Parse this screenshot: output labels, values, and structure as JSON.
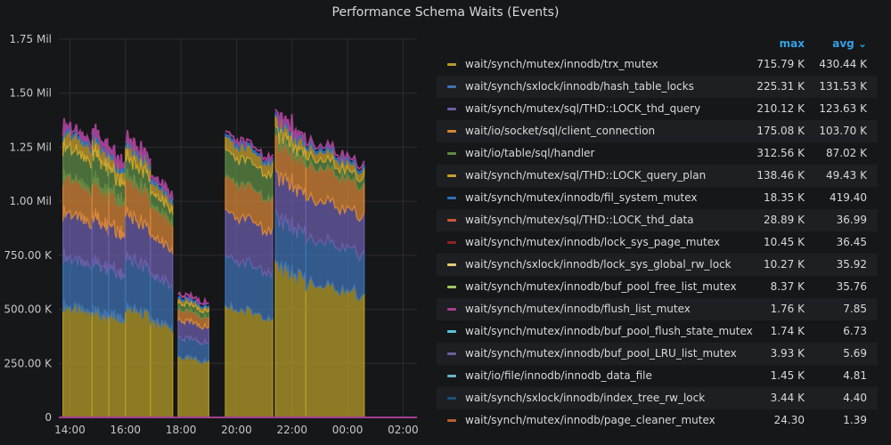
{
  "chart_data": {
    "type": "area",
    "title": "Performance Schema Waits (Events)",
    "y_ticks": [
      "0",
      "250.00 K",
      "500.00 K",
      "750.00 K",
      "1.00 Mil",
      "1.25 Mil",
      "1.50 Mil",
      "1.75 Mil"
    ],
    "y_tick_values": [
      0,
      250000,
      500000,
      750000,
      1000000,
      1250000,
      1500000,
      1750000
    ],
    "ylim": [
      0,
      1750000
    ],
    "x_ticks": [
      "14:00",
      "16:00",
      "18:00",
      "20:00",
      "22:00",
      "00:00",
      "02:00"
    ],
    "x_tick_values": [
      14,
      16,
      18,
      20,
      22,
      24,
      26
    ],
    "xlim": [
      13.6,
      26.5
    ],
    "stacked": true,
    "legend_header": {
      "max": "max",
      "avg": "avg"
    },
    "series": [
      {
        "name": "wait/synch/mutex/innodb/trx_mutex",
        "max": "715.79 K",
        "avg": "430.44 K",
        "color": "#b59c29"
      },
      {
        "name": "wait/synch/sxlock/innodb/hash_table_locks",
        "max": "225.31 K",
        "avg": "131.53 K",
        "color": "#3e72b1"
      },
      {
        "name": "wait/synch/mutex/sql/THD::LOCK_thd_query",
        "max": "210.12 K",
        "avg": "123.63 K",
        "color": "#6b5ea8"
      },
      {
        "name": "wait/io/socket/sql/client_connection",
        "max": "175.08 K",
        "avg": "103.70 K",
        "color": "#d68637"
      },
      {
        "name": "wait/io/table/sql/handler",
        "max": "312.56 K",
        "avg": "87.02 K",
        "color": "#5e8b45"
      },
      {
        "name": "wait/synch/mutex/sql/THD::LOCK_query_plan",
        "max": "138.46 K",
        "avg": "49.43 K",
        "color": "#c9a22e"
      },
      {
        "name": "wait/synch/mutex/innodb/fil_system_mutex",
        "max": "18.35 K",
        "avg": "419.40",
        "color": "#2f6fb8"
      },
      {
        "name": "wait/synch/mutex/sql/THD::LOCK_thd_data",
        "max": "28.89 K",
        "avg": "36.99",
        "color": "#d0573a"
      },
      {
        "name": "wait/synch/mutex/innodb/lock_sys_page_mutex",
        "max": "10.45 K",
        "avg": "36.45",
        "color": "#8f2323"
      },
      {
        "name": "wait/synch/sxlock/innodb/lock_sys_global_rw_lock",
        "max": "10.27 K",
        "avg": "35.92",
        "color": "#e6cd73"
      },
      {
        "name": "wait/synch/mutex/innodb/buf_pool_free_list_mutex",
        "max": "8.37 K",
        "avg": "35.76",
        "color": "#a3c763"
      },
      {
        "name": "wait/synch/mutex/innodb/flush_list_mutex",
        "max": "1.76 K",
        "avg": "7.85",
        "color": "#a33f91"
      },
      {
        "name": "wait/synch/mutex/innodb/buf_pool_flush_state_mutex",
        "max": "1.74 K",
        "avg": "6.73",
        "color": "#5bc3d9"
      },
      {
        "name": "wait/synch/mutex/innodb/buf_pool_LRU_list_mutex",
        "max": "3.93 K",
        "avg": "5.69",
        "color": "#6c5f9a"
      },
      {
        "name": "wait/io/file/innodb/innodb_data_file",
        "max": "1.45 K",
        "avg": "4.81",
        "color": "#67b4c9"
      },
      {
        "name": "wait/synch/sxlock/innodb/index_tree_rw_lock",
        "max": "3.44 K",
        "avg": "4.40",
        "color": "#1f4e7a"
      },
      {
        "name": "wait/synch/mutex/innodb/page_cleaner_mutex",
        "max": "24.30",
        "avg": "1.39",
        "color": "#b5622d"
      }
    ],
    "approx_stack_profile": {
      "note": "approximate stacked totals (events) per time segment, read from chart",
      "segments": [
        {
          "start": 13.75,
          "end": 14.8,
          "layers": [
            520000,
            230000,
            210000,
            170000,
            140000,
            70000,
            10000
          ]
        },
        {
          "start": 14.8,
          "end": 15.4,
          "layers": [
            500000,
            230000,
            210000,
            170000,
            130000,
            70000,
            10000
          ]
        },
        {
          "start": 15.4,
          "end": 16.0,
          "layers": [
            480000,
            220000,
            200000,
            160000,
            100000,
            60000,
            10000
          ]
        },
        {
          "start": 16.0,
          "end": 16.9,
          "layers": [
            510000,
            230000,
            200000,
            170000,
            90000,
            60000,
            10000
          ]
        },
        {
          "start": 16.9,
          "end": 17.7,
          "layers": [
            450000,
            210000,
            180000,
            140000,
            60000,
            50000,
            10000
          ]
        },
        {
          "start": 17.9,
          "end": 19.0,
          "layers": [
            280000,
            90000,
            80000,
            50000,
            30000,
            20000,
            5000
          ]
        },
        {
          "start": 19.6,
          "end": 21.3,
          "layers": [
            510000,
            230000,
            210000,
            160000,
            120000,
            60000,
            10000
          ]
        },
        {
          "start": 21.4,
          "end": 22.5,
          "layers": [
            700000,
            220000,
            200000,
            160000,
            40000,
            50000,
            10000
          ]
        },
        {
          "start": 22.5,
          "end": 24.6,
          "layers": [
            620000,
            210000,
            190000,
            150000,
            40000,
            40000,
            10000
          ]
        }
      ]
    }
  }
}
